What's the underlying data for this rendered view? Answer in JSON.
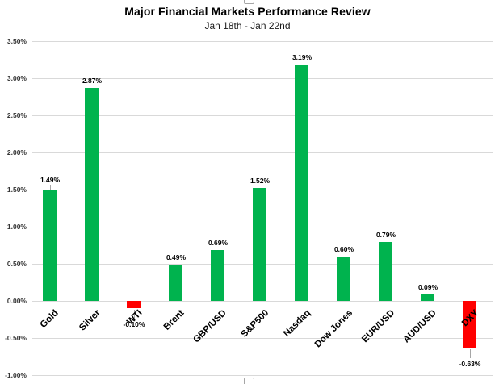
{
  "chart": {
    "title": "Major Financial Markets Performance Review",
    "subtitle": "Jan 18th - Jan 22nd"
  },
  "chart_data": {
    "type": "bar",
    "title": "Major Financial Markets Performance Review",
    "subtitle": "Jan 18th - Jan 22nd",
    "categories": [
      "Gold",
      "Silver",
      "WTI",
      "Brent",
      "GBP/USD",
      "S&P500",
      "Nasdaq",
      "Dow Jones",
      "EUR/USD",
      "AUD/USD",
      "DXY"
    ],
    "values": [
      1.49,
      2.87,
      -0.1,
      0.49,
      0.69,
      1.52,
      3.19,
      0.6,
      0.79,
      0.09,
      -0.63
    ],
    "value_labels": [
      "1.49%",
      "2.87%",
      "-0.10%",
      "0.49%",
      "0.69%",
      "1.52%",
      "3.19%",
      "0.60%",
      "0.79%",
      "0.09%",
      "-0.63%"
    ],
    "label_leader_indices": [
      0,
      2,
      10
    ],
    "xlabel": "",
    "ylabel": "",
    "ylim": [
      -1.0,
      3.5
    ],
    "ytick_step": 0.5,
    "ytick_labels": [
      "3.50%",
      "3.00%",
      "2.50%",
      "2.00%",
      "1.50%",
      "1.00%",
      "0.50%",
      "0.00%",
      "-0.50%",
      "-1.00%"
    ],
    "grid": true,
    "legend": false,
    "positive_color": "#00B34E",
    "negative_color": "#FF0000",
    "gridline_color": "#D9D9D9"
  }
}
